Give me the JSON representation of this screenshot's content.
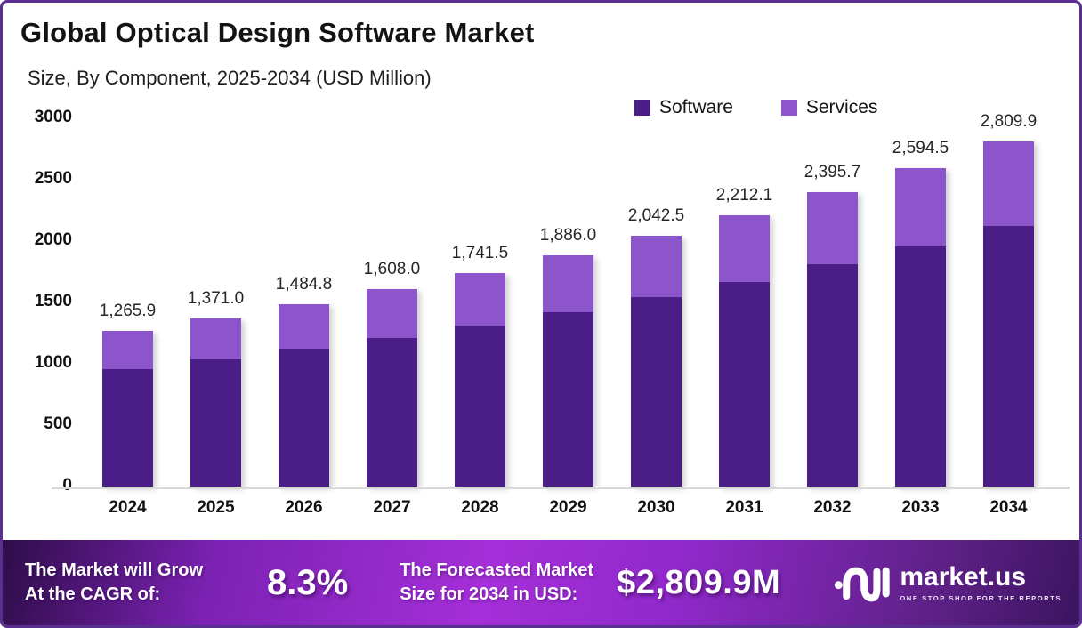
{
  "header": {
    "title": "Global Optical Design Software Market",
    "subtitle": "Size, By Component, 2025-2034 (USD Million)"
  },
  "legend": {
    "items": [
      {
        "label": "Software",
        "color": "#4A1D87"
      },
      {
        "label": "Services",
        "color": "#8C55CC"
      }
    ]
  },
  "chart_data": {
    "type": "bar",
    "stacked": true,
    "title": "Global Optical Design Software Market",
    "subtitle": "Size, By Component, 2025-2034 (USD Million)",
    "unit": "USD Million",
    "categories": [
      "2024",
      "2025",
      "2026",
      "2027",
      "2028",
      "2029",
      "2030",
      "2031",
      "2032",
      "2033",
      "2034"
    ],
    "totals": [
      1265.9,
      1371.0,
      1484.8,
      1608.0,
      1741.5,
      1886.0,
      2042.5,
      2212.1,
      2395.7,
      2594.5,
      2809.9
    ],
    "total_labels": [
      "1,265.9",
      "1,371.0",
      "1,484.8",
      "1,608.0",
      "1,741.5",
      "1,886.0",
      "2,042.5",
      "2,212.1",
      "2,395.7",
      "2,594.5",
      "2,809.9"
    ],
    "series": [
      {
        "name": "Software",
        "color": "#4A1D87",
        "values": [
          955.8,
          1035.1,
          1121.0,
          1214.0,
          1314.8,
          1423.9,
          1542.1,
          1670.1,
          1808.8,
          1958.9,
          2121.5
        ]
      },
      {
        "name": "Services",
        "color": "#8C55CC",
        "values": [
          310.1,
          335.9,
          363.8,
          394.0,
          426.7,
          462.1,
          500.4,
          542.0,
          586.9,
          635.6,
          688.4
        ]
      }
    ],
    "ylim": [
      0,
      3000
    ],
    "yticks": [
      0,
      500,
      1000,
      1500,
      2000,
      2500,
      3000
    ],
    "legend_position": "top-right",
    "grid": false
  },
  "banner": {
    "cagr_label_line1": "The Market will Grow",
    "cagr_label_line2": "At the CAGR of:",
    "cagr_value": "8.3%",
    "forecast_label_line1": "The Forecasted Market",
    "forecast_label_line2": "Size for 2034 in USD:",
    "forecast_value": "$2,809.9M",
    "brand": {
      "name": "market.us",
      "tagline": "ONE STOP SHOP FOR THE REPORTS"
    }
  },
  "colors": {
    "software": "#4A1D87",
    "services": "#8C55CC",
    "border": "#5B2E91",
    "axis_line": "#D8D8D8",
    "banner_bright": "#A52FD8",
    "banner_dark": "#2E0D49"
  }
}
